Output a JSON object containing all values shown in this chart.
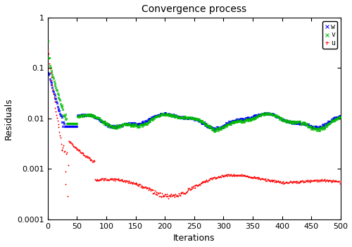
{
  "title": "Convergence process",
  "xlabel": "Iterations",
  "ylabel": "Residuals",
  "xlim": [
    0,
    500
  ],
  "ylim_log": [
    0.0001,
    1.0
  ],
  "yticks": [
    0.0001,
    0.001,
    0.01,
    0.1,
    1
  ],
  "ytick_labels": [
    "0.0001",
    "0.001",
    "0.01",
    "0.1",
    "1"
  ],
  "xticks": [
    0,
    50,
    100,
    150,
    200,
    250,
    300,
    350,
    400,
    450,
    500
  ],
  "legend_labels": [
    "u",
    "v",
    "w"
  ],
  "legend_colors": [
    "#ff0000",
    "#00bb00",
    "#0000ff"
  ],
  "legend_markers": [
    "+",
    "x",
    "x"
  ],
  "u_color": "#ff0000",
  "v_color": "#00bb00",
  "w_color": "#0000ff",
  "background_color": "#ffffff",
  "title_fontsize": 10,
  "axis_label_fontsize": 9,
  "tick_fontsize": 8,
  "marker_size": 2,
  "marker_edge_width": 0.7
}
